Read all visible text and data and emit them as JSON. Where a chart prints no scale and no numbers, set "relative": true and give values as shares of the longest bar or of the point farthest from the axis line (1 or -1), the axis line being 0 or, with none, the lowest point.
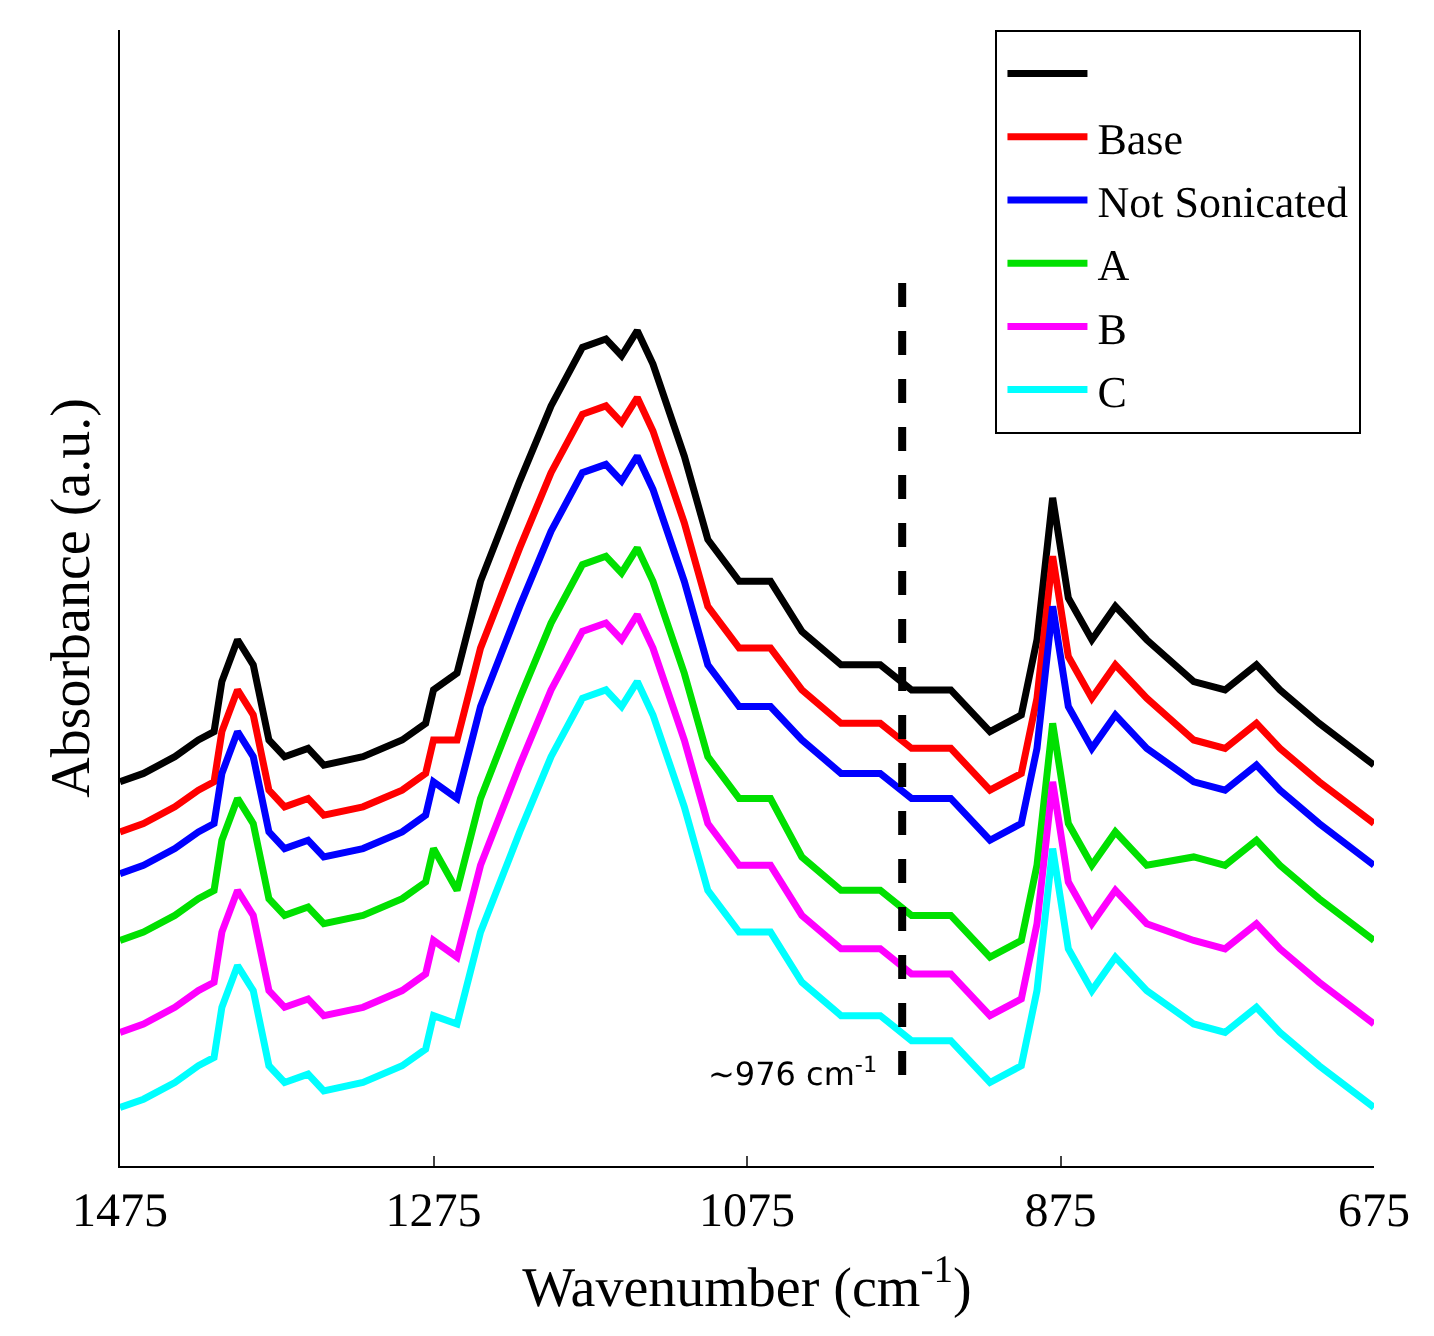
{
  "chart_data": {
    "type": "line",
    "relative": true,
    "xlabel": "Wavenumber (cm$^{-1}$)",
    "ylabel": "Absorbance (a.u.)",
    "x": [
      1475,
      1460,
      1440,
      1425,
      1415,
      1410,
      1400,
      1390,
      1380,
      1370,
      1355,
      1345,
      1320,
      1295,
      1280,
      1275,
      1260,
      1245,
      1220,
      1200,
      1180,
      1165,
      1155,
      1145,
      1135,
      1115,
      1100,
      1080,
      1060,
      1040,
      1015,
      990,
      970,
      945,
      920,
      900,
      890,
      880,
      870,
      855,
      840,
      820,
      790,
      770,
      750,
      735,
      710,
      675
    ],
    "xlim": [
      1475,
      675
    ],
    "xticks": [
      1475,
      1275,
      1075,
      875,
      675
    ],
    "legend": "top right",
    "line_style": "solid",
    "marker": "none",
    "series": [
      {
        "color": "#000000",
        "values": [
          0.46,
          0.47,
          0.49,
          0.51,
          0.52,
          0.58,
          0.63,
          0.6,
          0.51,
          0.49,
          0.5,
          0.48,
          0.49,
          0.51,
          0.53,
          0.57,
          0.59,
          0.7,
          0.82,
          0.91,
          0.98,
          0.99,
          0.97,
          1.0,
          0.96,
          0.85,
          0.75,
          0.7,
          0.7,
          0.64,
          0.6,
          0.6,
          0.57,
          0.57,
          0.52,
          0.54,
          0.63,
          0.8,
          0.68,
          0.63,
          0.67,
          0.63,
          0.58,
          0.57,
          0.6,
          0.57,
          0.53,
          0.48
        ]
      },
      {
        "name": "Base",
        "color": "#ff0000",
        "values": [
          0.4,
          0.41,
          0.43,
          0.45,
          0.46,
          0.52,
          0.57,
          0.54,
          0.45,
          0.43,
          0.44,
          0.42,
          0.43,
          0.45,
          0.47,
          0.51,
          0.51,
          0.62,
          0.74,
          0.83,
          0.9,
          0.91,
          0.89,
          0.92,
          0.88,
          0.77,
          0.67,
          0.62,
          0.62,
          0.57,
          0.53,
          0.53,
          0.5,
          0.5,
          0.45,
          0.47,
          0.56,
          0.73,
          0.61,
          0.56,
          0.6,
          0.56,
          0.51,
          0.5,
          0.53,
          0.5,
          0.46,
          0.41
        ]
      },
      {
        "name": "Not Sonicated",
        "color": "#0000ff",
        "values": [
          0.35,
          0.36,
          0.38,
          0.4,
          0.41,
          0.47,
          0.52,
          0.49,
          0.4,
          0.38,
          0.39,
          0.37,
          0.38,
          0.4,
          0.42,
          0.46,
          0.44,
          0.55,
          0.67,
          0.76,
          0.83,
          0.84,
          0.82,
          0.85,
          0.81,
          0.7,
          0.6,
          0.55,
          0.55,
          0.51,
          0.47,
          0.47,
          0.44,
          0.44,
          0.39,
          0.41,
          0.5,
          0.67,
          0.55,
          0.5,
          0.54,
          0.5,
          0.46,
          0.45,
          0.48,
          0.45,
          0.41,
          0.36
        ]
      },
      {
        "name": "A",
        "color": "#00e000",
        "values": [
          0.27,
          0.28,
          0.3,
          0.32,
          0.33,
          0.39,
          0.44,
          0.41,
          0.32,
          0.3,
          0.31,
          0.29,
          0.3,
          0.32,
          0.34,
          0.38,
          0.33,
          0.44,
          0.56,
          0.65,
          0.72,
          0.73,
          0.71,
          0.74,
          0.7,
          0.59,
          0.49,
          0.44,
          0.44,
          0.37,
          0.33,
          0.33,
          0.3,
          0.3,
          0.25,
          0.27,
          0.36,
          0.53,
          0.41,
          0.36,
          0.4,
          0.36,
          0.37,
          0.36,
          0.39,
          0.36,
          0.32,
          0.27
        ]
      },
      {
        "name": "B",
        "color": "#ff00ff",
        "values": [
          0.16,
          0.17,
          0.19,
          0.21,
          0.22,
          0.28,
          0.33,
          0.3,
          0.21,
          0.19,
          0.2,
          0.18,
          0.19,
          0.21,
          0.23,
          0.27,
          0.25,
          0.36,
          0.48,
          0.57,
          0.64,
          0.65,
          0.63,
          0.66,
          0.62,
          0.51,
          0.41,
          0.36,
          0.36,
          0.3,
          0.26,
          0.26,
          0.23,
          0.23,
          0.18,
          0.2,
          0.29,
          0.46,
          0.34,
          0.29,
          0.33,
          0.29,
          0.27,
          0.26,
          0.29,
          0.26,
          0.22,
          0.17
        ]
      },
      {
        "name": "C",
        "color": "#00ffff",
        "values": [
          0.07,
          0.08,
          0.1,
          0.12,
          0.13,
          0.19,
          0.24,
          0.21,
          0.12,
          0.1,
          0.11,
          0.09,
          0.1,
          0.12,
          0.14,
          0.18,
          0.17,
          0.28,
          0.4,
          0.49,
          0.56,
          0.57,
          0.55,
          0.58,
          0.54,
          0.43,
          0.33,
          0.28,
          0.28,
          0.22,
          0.18,
          0.18,
          0.15,
          0.15,
          0.1,
          0.12,
          0.21,
          0.38,
          0.26,
          0.21,
          0.25,
          0.21,
          0.17,
          0.16,
          0.19,
          0.16,
          0.12,
          0.07
        ]
      }
    ],
    "ref_lines": [
      {
        "axis": "x",
        "value": 976,
        "label": "~976 cm$^{-1}$",
        "color": "#000000",
        "line_style": "dashed"
      }
    ]
  }
}
